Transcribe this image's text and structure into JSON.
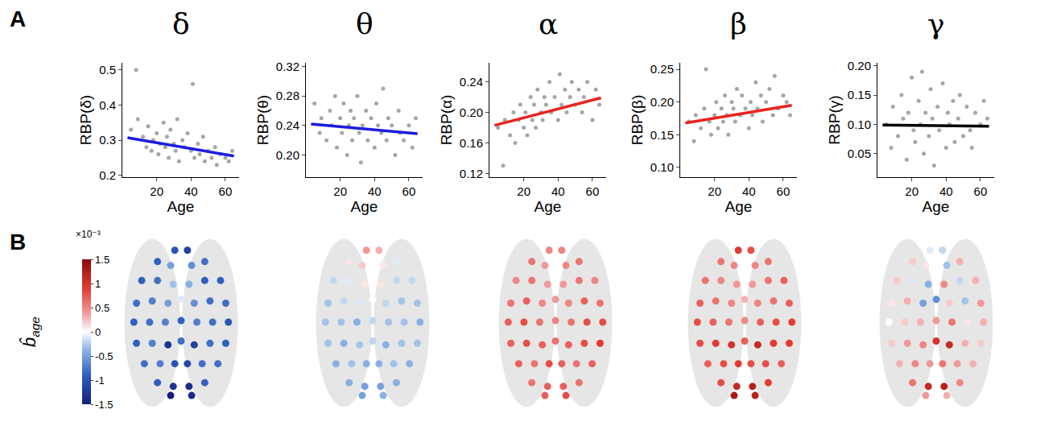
{
  "panel_labels": [
    "A",
    "B"
  ],
  "chart_data": [
    {
      "type": "scatter",
      "title": "δ",
      "x_label": "Age",
      "y_label": "RBP(δ)",
      "xlim": [
        0,
        68
      ],
      "xticks": [
        20,
        40,
        60
      ],
      "ylim": [
        0.195,
        0.52
      ],
      "yticks": [
        0.2,
        0.3,
        0.4,
        0.5
      ],
      "points": {
        "color": "#a6a6a6",
        "x": [
          5,
          8,
          9,
          12,
          14,
          15,
          17,
          18,
          20,
          21,
          22,
          24,
          25,
          26,
          27,
          28,
          30,
          31,
          32,
          33,
          35,
          36,
          38,
          40,
          41,
          42,
          44,
          45,
          47,
          48,
          50,
          52,
          54,
          55,
          57,
          60,
          62,
          64
        ],
        "y": [
          0.33,
          0.5,
          0.36,
          0.31,
          0.28,
          0.34,
          0.27,
          0.3,
          0.32,
          0.26,
          0.29,
          0.35,
          0.28,
          0.31,
          0.25,
          0.33,
          0.29,
          0.27,
          0.36,
          0.24,
          0.3,
          0.28,
          0.32,
          0.27,
          0.46,
          0.25,
          0.29,
          0.26,
          0.31,
          0.24,
          0.27,
          0.25,
          0.28,
          0.23,
          0.26,
          0.25,
          0.24,
          0.27
        ]
      },
      "fit": {
        "color": "#1c1ce0",
        "x": [
          3,
          65
        ],
        "y": [
          0.307,
          0.255
        ]
      }
    },
    {
      "type": "scatter",
      "title": "θ",
      "x_label": "Age",
      "y_label": "RBP(θ)",
      "xlim": [
        0,
        68
      ],
      "xticks": [
        20,
        40,
        60
      ],
      "ylim": [
        0.17,
        0.325
      ],
      "yticks": [
        {
          "value": 0.2,
          "label": "0.20"
        },
        0.24,
        0.28,
        0.32
      ],
      "points": {
        "color": "#a6a6a6",
        "x": [
          5,
          8,
          9,
          12,
          14,
          15,
          17,
          18,
          20,
          21,
          22,
          24,
          25,
          26,
          27,
          28,
          30,
          31,
          32,
          33,
          35,
          36,
          38,
          40,
          41,
          42,
          44,
          45,
          47,
          48,
          50,
          52,
          54,
          55,
          57,
          60,
          62,
          64
        ],
        "y": [
          0.27,
          0.23,
          0.25,
          0.22,
          0.26,
          0.24,
          0.28,
          0.21,
          0.25,
          0.23,
          0.27,
          0.2,
          0.24,
          0.26,
          0.22,
          0.25,
          0.28,
          0.23,
          0.19,
          0.24,
          0.26,
          0.22,
          0.25,
          0.21,
          0.27,
          0.24,
          0.23,
          0.29,
          0.22,
          0.25,
          0.24,
          0.2,
          0.26,
          0.23,
          0.22,
          0.24,
          0.21,
          0.25
        ]
      },
      "fit": {
        "color": "#1c1ce0",
        "x": [
          3,
          65
        ],
        "y": [
          0.242,
          0.229
        ]
      }
    },
    {
      "type": "scatter",
      "title": "α",
      "x_label": "Age",
      "y_label": "RBP(α)",
      "xlim": [
        0,
        68
      ],
      "xticks": [
        20,
        40,
        60
      ],
      "ylim": [
        0.115,
        0.265
      ],
      "yticks": [
        0.12,
        0.16,
        {
          "value": 0.2,
          "label": "0.20"
        },
        0.24
      ],
      "points": {
        "color": "#a6a6a6",
        "x": [
          5,
          8,
          9,
          12,
          14,
          15,
          17,
          18,
          20,
          21,
          22,
          24,
          25,
          26,
          27,
          28,
          30,
          31,
          32,
          33,
          35,
          36,
          38,
          40,
          41,
          42,
          44,
          45,
          47,
          48,
          50,
          52,
          54,
          55,
          57,
          60,
          62,
          64
        ],
        "y": [
          0.18,
          0.13,
          0.19,
          0.17,
          0.2,
          0.16,
          0.19,
          0.21,
          0.18,
          0.2,
          0.17,
          0.22,
          0.19,
          0.21,
          0.18,
          0.23,
          0.2,
          0.19,
          0.22,
          0.21,
          0.24,
          0.2,
          0.22,
          0.19,
          0.25,
          0.21,
          0.23,
          0.2,
          0.22,
          0.24,
          0.21,
          0.23,
          0.2,
          0.22,
          0.24,
          0.19,
          0.23,
          0.21
        ]
      },
      "fit": {
        "color": "#e8231f",
        "x": [
          3,
          65
        ],
        "y": [
          0.183,
          0.219
        ]
      }
    },
    {
      "type": "scatter",
      "title": "β",
      "x_label": "Age",
      "y_label": "RBP(β)",
      "xlim": [
        0,
        68
      ],
      "xticks": [
        20,
        40,
        60
      ],
      "ylim": [
        0.085,
        0.26
      ],
      "yticks": [
        {
          "value": 0.1,
          "label": "0.10"
        },
        0.15,
        {
          "value": 0.2,
          "label": "0.20"
        },
        0.25
      ],
      "points": {
        "color": "#a6a6a6",
        "x": [
          5,
          8,
          9,
          12,
          14,
          15,
          17,
          18,
          20,
          21,
          22,
          24,
          25,
          26,
          27,
          28,
          30,
          31,
          32,
          33,
          35,
          36,
          38,
          40,
          41,
          42,
          44,
          45,
          47,
          48,
          50,
          52,
          54,
          55,
          57,
          60,
          62,
          64
        ],
        "y": [
          0.17,
          0.14,
          0.18,
          0.16,
          0.19,
          0.25,
          0.17,
          0.15,
          0.18,
          0.2,
          0.16,
          0.19,
          0.17,
          0.21,
          0.18,
          0.15,
          0.2,
          0.19,
          0.17,
          0.22,
          0.18,
          0.21,
          0.19,
          0.16,
          0.2,
          0.18,
          0.23,
          0.19,
          0.21,
          0.17,
          0.2,
          0.22,
          0.18,
          0.24,
          0.19,
          0.21,
          0.2,
          0.18
        ]
      },
      "fit": {
        "color": "#e8231f",
        "x": [
          3,
          65
        ],
        "y": [
          0.168,
          0.195
        ]
      }
    },
    {
      "type": "scatter",
      "title": "γ",
      "x_label": "Age",
      "y_label": "RBP(γ)",
      "xlim": [
        0,
        68
      ],
      "xticks": [
        20,
        40,
        60
      ],
      "ylim": [
        0.01,
        0.205
      ],
      "yticks": [
        0.05,
        {
          "value": 0.1,
          "label": "0.10"
        },
        0.15,
        {
          "value": 0.2,
          "label": "0.20"
        }
      ],
      "points": {
        "color": "#a6a6a6",
        "x": [
          5,
          8,
          9,
          12,
          14,
          15,
          17,
          18,
          20,
          21,
          22,
          24,
          25,
          26,
          27,
          28,
          30,
          31,
          32,
          33,
          35,
          36,
          38,
          40,
          41,
          42,
          44,
          45,
          47,
          48,
          50,
          52,
          54,
          55,
          57,
          60,
          62,
          64
        ],
        "y": [
          0.1,
          0.06,
          0.13,
          0.08,
          0.15,
          0.11,
          0.04,
          0.12,
          0.18,
          0.09,
          0.07,
          0.14,
          0.1,
          0.19,
          0.05,
          0.12,
          0.08,
          0.16,
          0.11,
          0.03,
          0.13,
          0.09,
          0.17,
          0.06,
          0.12,
          0.1,
          0.14,
          0.07,
          0.11,
          0.15,
          0.08,
          0.13,
          0.09,
          0.06,
          0.12,
          0.1,
          0.14,
          0.11
        ]
      },
      "fit": {
        "color": "#000000",
        "x": [
          3,
          65
        ],
        "y": [
          0.099,
          0.097
        ]
      }
    },
    {
      "type": "topography",
      "electrodes": {
        "x": [
          -0.12,
          0.12,
          -0.45,
          -0.2,
          0.2,
          0.45,
          -0.75,
          -0.45,
          -0.15,
          0.15,
          0.45,
          0.75,
          -0.85,
          -0.55,
          -0.25,
          0,
          0.25,
          0.55,
          0.85,
          -0.9,
          -0.6,
          -0.3,
          0,
          0.3,
          0.6,
          0.9,
          -0.85,
          -0.55,
          -0.25,
          0,
          0.25,
          0.55,
          0.85,
          -0.7,
          -0.4,
          -0.12,
          0.12,
          0.4,
          0.7,
          -0.45,
          -0.15,
          0.15,
          0.45,
          -0.2,
          0.2
        ],
        "y": [
          0.95,
          0.95,
          0.8,
          0.75,
          0.75,
          0.8,
          0.55,
          0.55,
          0.5,
          0.5,
          0.55,
          0.55,
          0.25,
          0.28,
          0.25,
          0.3,
          0.25,
          0.28,
          0.25,
          0,
          0,
          0,
          0.02,
          0,
          0,
          0,
          -0.28,
          -0.28,
          -0.3,
          -0.25,
          -0.3,
          -0.28,
          -0.28,
          -0.55,
          -0.55,
          -0.55,
          -0.55,
          -0.55,
          -0.55,
          -0.8,
          -0.85,
          -0.85,
          -0.8,
          -0.97,
          -0.97
        ]
      },
      "maps": [
        [
          -0.001,
          -0.0012,
          -0.0009,
          -0.0005,
          -0.0006,
          -0.0008,
          -0.0009,
          -0.0008,
          -0.0003,
          -0.0004,
          -0.0009,
          -0.0009,
          -0.0008,
          -0.0007,
          -0.0005,
          -0.0001,
          -0.0006,
          -0.0008,
          -0.0008,
          -0.0009,
          -0.0008,
          -0.0007,
          -0.0009,
          -0.0007,
          -0.0008,
          -0.001,
          -0.0009,
          -0.0007,
          -0.0013,
          -0.0008,
          -0.0012,
          -0.0008,
          -0.0009,
          -0.0008,
          -0.0007,
          -0.001,
          -0.0011,
          -0.0008,
          -0.0008,
          -0.0009,
          -0.0013,
          -0.0014,
          -0.0009,
          -0.0015,
          -0.0014
        ],
        [
          0.0004,
          0.0003,
          0.0001,
          0.0002,
          0.0001,
          -0.0001,
          -0.0002,
          -0.0001,
          0.0001,
          0.0001,
          -0.0002,
          -0.0002,
          -0.0003,
          -0.0002,
          -0.0001,
          0,
          -0.0002,
          -0.0003,
          -0.0003,
          -0.0003,
          -0.0003,
          -0.0004,
          -0.0002,
          -0.0003,
          -0.0003,
          -0.0004,
          -0.0003,
          -0.0004,
          -0.0003,
          -0.0002,
          -0.0004,
          -0.0003,
          -0.0003,
          -0.0004,
          -0.0003,
          -0.0004,
          -0.0004,
          -0.0003,
          -0.0004,
          -0.0004,
          -0.0005,
          -0.0005,
          -0.0004,
          -0.0005,
          -0.0004
        ],
        [
          0.0005,
          0.0005,
          0.0006,
          0.0004,
          0.0005,
          0.0006,
          0.0005,
          0.0006,
          0.0004,
          0.0004,
          0.0006,
          0.0005,
          0.0006,
          0.0007,
          0.0005,
          0.0004,
          0.0005,
          0.0007,
          0.0006,
          0.0007,
          0.0008,
          0.0006,
          0.0005,
          0.0006,
          0.0008,
          0.0008,
          0.0007,
          0.0008,
          0.0007,
          0.0006,
          0.0007,
          0.0008,
          0.0009,
          0.0007,
          0.0006,
          0.0008,
          0.0007,
          0.0006,
          0.0007,
          0.0006,
          0.0007,
          0.0007,
          0.0006,
          0.0007,
          0.0008
        ],
        [
          0.0009,
          0.0008,
          0.0006,
          0.0005,
          0.0005,
          0.0006,
          0.0006,
          0.0005,
          0.0004,
          0.0004,
          0.0006,
          0.0007,
          0.0007,
          0.0006,
          0.0005,
          0.0003,
          0.0005,
          0.0006,
          0.0007,
          0.0008,
          0.0007,
          0.0006,
          0.0005,
          0.0007,
          0.0008,
          0.0009,
          0.0008,
          0.0009,
          0.001,
          0.0007,
          0.0011,
          0.0009,
          0.0009,
          0.0007,
          0.0008,
          0.0009,
          0.0008,
          0.0008,
          0.0007,
          0.0008,
          0.0011,
          0.0012,
          0.0009,
          0.0013,
          0.0012
        ],
        [
          -0.0001,
          -0.0002,
          0.0002,
          0.0001,
          -0.0003,
          0.0003,
          0.0002,
          -0.0001,
          -0.0004,
          0.0005,
          -0.0002,
          0.0003,
          0.0001,
          0.0003,
          -0.0005,
          -0.0006,
          0.0002,
          -0.0003,
          0.0004,
          0,
          0.0002,
          0.0003,
          0.0004,
          0.0006,
          0.0001,
          0.0003,
          0.0002,
          0.0004,
          0.0005,
          0.001,
          0.0011,
          0.0003,
          0.0002,
          0.0003,
          0.0005,
          0.0004,
          0.0006,
          0.0004,
          0.0003,
          0.0006,
          0.0011,
          0.0012,
          0.0005,
          0.0004,
          0.0003
        ]
      ],
      "colorbar": {
        "title_symbol": "b̂",
        "title_subscript": "age",
        "exponent": "×10⁻³",
        "range": [
          -0.0015,
          0.0015
        ],
        "ticks": [
          {
            "value": -0.0015,
            "label": "-1.5"
          },
          {
            "value": -0.001,
            "label": "-1"
          },
          {
            "value": -0.0005,
            "label": "-0.5"
          },
          0,
          {
            "value": 0.0005,
            "label": "0.5"
          },
          {
            "value": 0.001,
            "label": "1"
          },
          {
            "value": 0.0015,
            "label": "1.5"
          }
        ]
      }
    }
  ]
}
